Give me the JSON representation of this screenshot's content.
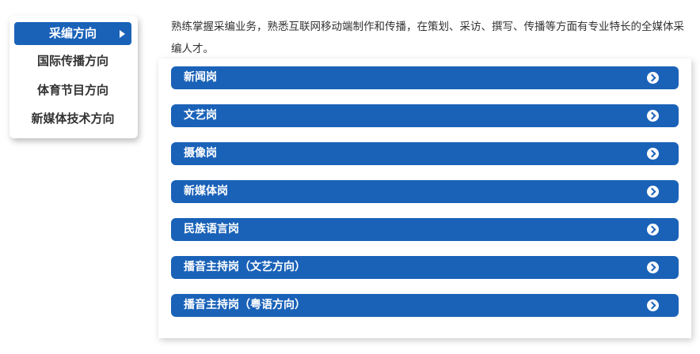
{
  "menu": {
    "items": [
      {
        "label": "采编方向",
        "active": true
      },
      {
        "label": "国际传播方向"
      },
      {
        "label": "体育节目方向"
      },
      {
        "label": "新媒体技术方向"
      }
    ]
  },
  "intro": "熟练掌握采编业务，熟悉互联网移动端制作和传播，在策划、采访、撰写、传播等方面有专业特长的全媒体采编人才。",
  "positions": [
    "新闻岗",
    "文艺岗",
    "摄像岗",
    "新媒体岗",
    "民族语言岗",
    "播音主持岗（文艺方向）",
    "播音主持岗（粤语方向）"
  ],
  "colors": {
    "accent": "#1a62b8"
  }
}
